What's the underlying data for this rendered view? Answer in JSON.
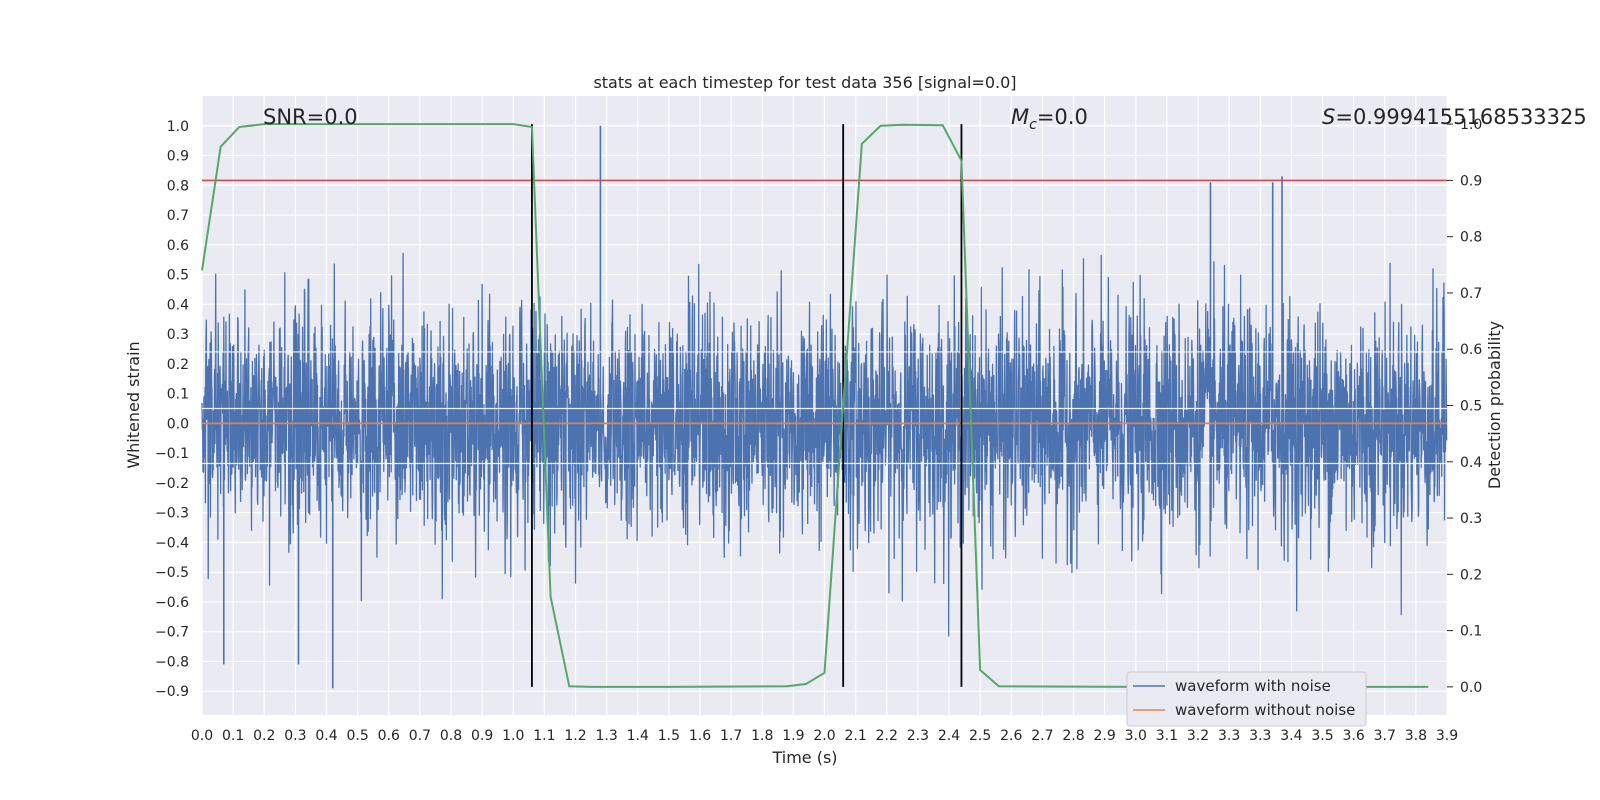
{
  "chart_data": {
    "type": "line",
    "title": "stats at each timestep for test data 356 [signal=0.0]",
    "xlabel": "Time (s)",
    "ylabel": "Whitened strain",
    "ylabel_right": "Detection probability",
    "xlim": [
      0.0,
      4.0
    ],
    "ylim": [
      -0.98,
      1.1
    ],
    "ylim_right": [
      -0.05,
      1.05
    ],
    "grid": true,
    "legend_position": "lower-right",
    "x_ticks": [
      "0.0",
      "0.1",
      "0.2",
      "0.3",
      "0.4",
      "0.5",
      "0.6",
      "0.7",
      "0.8",
      "0.9",
      "1.0",
      "1.1",
      "1.2",
      "1.3",
      "1.4",
      "1.5",
      "1.6",
      "1.7",
      "1.8",
      "1.9",
      "2.0",
      "2.1",
      "2.2",
      "2.3",
      "2.4",
      "2.5",
      "2.6",
      "2.7",
      "2.8",
      "2.9",
      "3.0",
      "3.1",
      "3.2",
      "3.3",
      "3.3",
      "3.4",
      "3.5",
      "3.6",
      "3.7",
      "3.8",
      "3.9"
    ],
    "y_ticks": [
      "−0.9",
      "−0.8",
      "−0.7",
      "−0.6",
      "−0.5",
      "−0.4",
      "−0.3",
      "−0.2",
      "−0.1",
      "0.0",
      "0.1",
      "0.2",
      "0.3",
      "0.4",
      "0.5",
      "0.6",
      "0.7",
      "0.8",
      "0.9",
      "1.0"
    ],
    "y_ticks_right": [
      "0.0",
      "0.1",
      "0.2",
      "0.3",
      "0.4",
      "0.5",
      "0.6",
      "0.7",
      "0.8",
      "0.9",
      "1.0"
    ],
    "annotations": {
      "snr": "SNR=0.0",
      "mc_symbol": "M",
      "mc_sub": "c",
      "mc_value": "=0.0",
      "s_symbol": "S",
      "s_value": "=0.9994155168533325"
    },
    "series": [
      {
        "name": "waveform with noise",
        "color": "#4c72b0",
        "description_values": "dense noisy strain, roughly symmetric around 0, typical amplitude about ±0.35, peaks up to about 1.0 near t=1.28 and troughs down to about -0.89 near t=0.42"
      },
      {
        "name": "waveform without noise",
        "color": "#dd8452",
        "values_constant": 0.0
      },
      {
        "name": "detection probability",
        "color": "#55a868",
        "axis": "right",
        "x": [
          0.0,
          0.06,
          0.12,
          0.2,
          0.5,
          1.0,
          1.06,
          1.12,
          1.18,
          1.25,
          1.5,
          1.88,
          1.94,
          2.0,
          2.06,
          2.12,
          2.18,
          2.25,
          2.38,
          2.44,
          2.5,
          2.56,
          3.0,
          3.5,
          3.94
        ],
        "values": [
          0.74,
          0.96,
          0.995,
          1.0,
          1.0,
          1.0,
          0.995,
          0.16,
          0.001,
          0.0,
          0.0,
          0.001,
          0.005,
          0.025,
          0.5,
          0.965,
          0.997,
          0.999,
          0.998,
          0.935,
          0.03,
          0.001,
          0.0,
          0.0,
          0.0
        ]
      }
    ],
    "hlines": [
      {
        "axis": "right",
        "value": 0.9,
        "color": "#c44e52"
      }
    ],
    "vlines": [
      {
        "x": 1.06,
        "color": "#000000"
      },
      {
        "x": 2.06,
        "color": "#000000"
      },
      {
        "x": 2.44,
        "color": "#000000"
      }
    ]
  }
}
